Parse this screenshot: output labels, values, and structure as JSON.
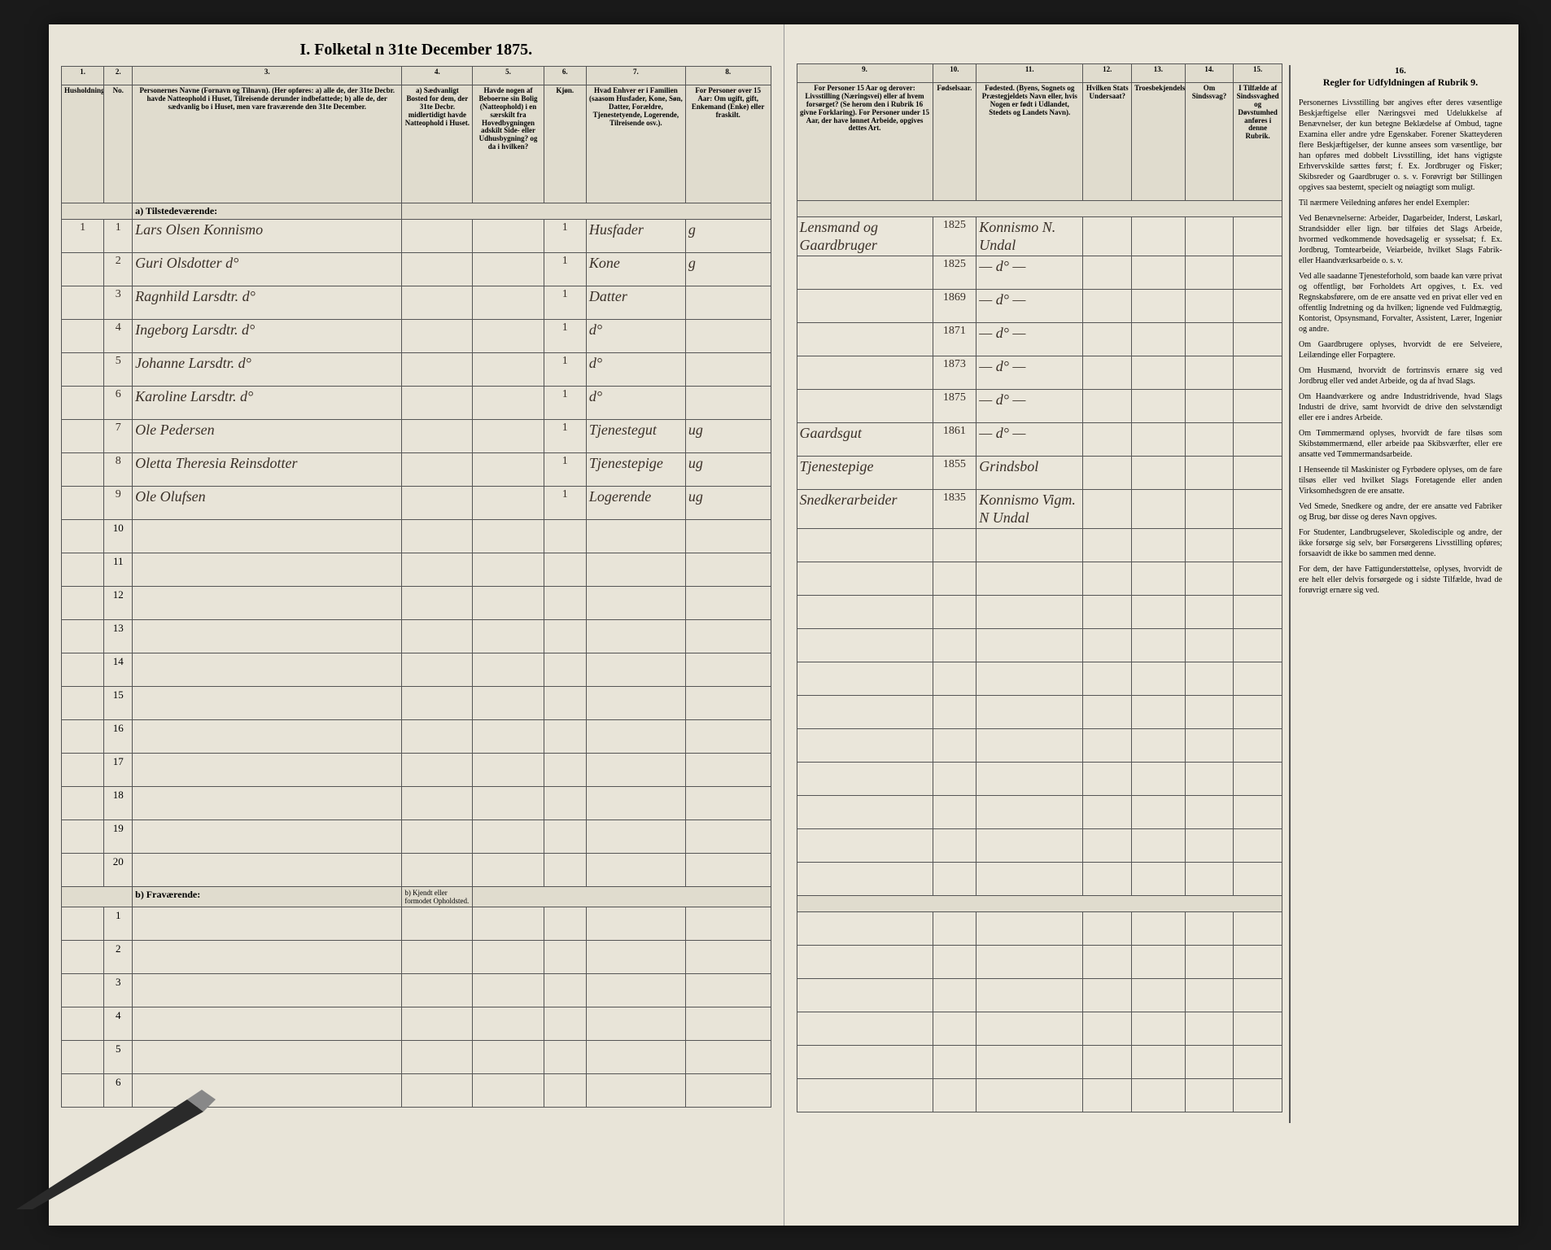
{
  "title": "I.  Folketal     n 31te December 1875.",
  "columns_left": {
    "1": "1.",
    "2": "2.",
    "3": "3.",
    "4": "4.",
    "5": "5.",
    "6": "6.",
    "7": "7.",
    "8": "8."
  },
  "columns_right": {
    "9": "9.",
    "10": "10.",
    "11": "11.",
    "12": "12.",
    "13": "13.",
    "14": "14.",
    "15": "15.",
    "16": "16."
  },
  "headers_left": {
    "1": "Husholdninger.",
    "2": "No.",
    "3": "Personernes Navne (Fornavn og Tilnavn).\n(Her opføres:\na) alle de, der 31te Decbr. havde Natteophold i Huset, Tilreisende derunder indbefattede;\nb) alle de, der sædvanlig bo i Huset, men vare fraværende den 31te December.",
    "4": "a) Sædvanligt Bosted for dem, der 31te Decbr. midlertidigt havde Natteophold i Huset.",
    "5": "Havde nogen af Beboerne sin Bolig (Natteophold) i en særskilt fra Hovedbygningen adskilt Side- eller Udhusbygning? og da i hvilken?",
    "6": "Kjøn.",
    "7": "Hvad Enhver er i Familien (saasom Husfader, Kone, Søn, Datter, Forældre, Tjenestetyende, Logerende, Tilreisende osv.).",
    "8": "For Personer over 15 Aar: Om ugift, gift, Enkemand (Enke) eller fraskilt."
  },
  "headers_right": {
    "9": "For Personer 15 Aar og derover: Livsstilling (Næringsvei) eller af hvem forsørget? (Se herom den i Rubrik 16 givne Forklaring).\nFor Personer under 15 Aar, der have lønnet Arbeide, opgives dettes Art.",
    "10": "Fødselsaar.",
    "11": "Fødested. (Byens, Sognets og Præstegjeldets Navn eller, hvis Nogen er født i Udlandet, Stedets og Landets Navn).",
    "12": "Hvilken Stats Undersaat?",
    "13": "Troesbekjendelse.",
    "14": "Om Sindssvag?",
    "15": "I Tilfælde af Sindssvaghed og Døvstumhed anføres i denne Rubrik.",
    "16": "Regler for Udfyldningen af Rubrik 9."
  },
  "section_a": "a)  Tilstedeværende:",
  "section_b": "b)  Fraværende:",
  "section_b_col4": "b) Kjendt eller formodet Opholdsted.",
  "rows": [
    {
      "hh": "1",
      "no": "1",
      "name": "Lars Olsen  Konnismo",
      "c4": "",
      "c5": "",
      "c6": "1",
      "c7": "Husfader",
      "c8": "g",
      "c9": "Lensmand og Gaardbruger",
      "c10": "1825",
      "c11": "Konnismo N. Undal",
      "c12": "",
      "c13": "",
      "c14": "",
      "c15": ""
    },
    {
      "hh": "",
      "no": "2",
      "name": "Guri Olsdotter   d°",
      "c4": "",
      "c5": "",
      "c6": "1",
      "c7": "Kone",
      "c8": "g",
      "c9": "",
      "c10": "1825",
      "c11": "— d° —",
      "c12": "",
      "c13": "",
      "c14": "",
      "c15": ""
    },
    {
      "hh": "",
      "no": "3",
      "name": "Ragnhild Larsdtr.  d°",
      "c4": "",
      "c5": "",
      "c6": "1",
      "c7": "Datter",
      "c8": "",
      "c9": "",
      "c10": "1869",
      "c11": "— d° —",
      "c12": "",
      "c13": "",
      "c14": "",
      "c15": ""
    },
    {
      "hh": "",
      "no": "4",
      "name": "Ingeborg Larsdtr.  d°",
      "c4": "",
      "c5": "",
      "c6": "1",
      "c7": "d°",
      "c8": "",
      "c9": "",
      "c10": "1871",
      "c11": "— d° —",
      "c12": "",
      "c13": "",
      "c14": "",
      "c15": ""
    },
    {
      "hh": "",
      "no": "5",
      "name": "Johanne Larsdtr.  d°",
      "c4": "",
      "c5": "",
      "c6": "1",
      "c7": "d°",
      "c8": "",
      "c9": "",
      "c10": "1873",
      "c11": "— d° —",
      "c12": "",
      "c13": "",
      "c14": "",
      "c15": ""
    },
    {
      "hh": "",
      "no": "6",
      "name": "Karoline Larsdtr.  d°",
      "c4": "",
      "c5": "",
      "c6": "1",
      "c7": "d°",
      "c8": "",
      "c9": "",
      "c10": "1875",
      "c11": "— d° —",
      "c12": "",
      "c13": "",
      "c14": "",
      "c15": ""
    },
    {
      "hh": "",
      "no": "7",
      "name": "Ole Pedersen",
      "c4": "",
      "c5": "",
      "c6": "1",
      "c7": "Tjenestegut",
      "c8": "ug",
      "c9": "Gaardsgut",
      "c10": "1861",
      "c11": "— d° —",
      "c12": "",
      "c13": "",
      "c14": "",
      "c15": ""
    },
    {
      "hh": "",
      "no": "8",
      "name": "Oletta Theresia Reinsdotter",
      "c4": "",
      "c5": "",
      "c6": "1",
      "c7": "Tjenestepige",
      "c8": "ug",
      "c9": "Tjenestepige",
      "c10": "1855",
      "c11": "Grindsbol",
      "c12": "",
      "c13": "",
      "c14": "",
      "c15": ""
    },
    {
      "hh": "",
      "no": "9",
      "name": "Ole Olufsen",
      "c4": "",
      "c5": "",
      "c6": "1",
      "c7": "Logerende",
      "c8": "ug",
      "c9": "Snedkerarbeider",
      "c10": "1835",
      "c11": "Konnismo Vigm. N Undal",
      "c12": "",
      "c13": "",
      "c14": "",
      "c15": ""
    }
  ],
  "empty_a": [
    "10",
    "11",
    "12",
    "13",
    "14",
    "15",
    "16",
    "17",
    "18",
    "19",
    "20"
  ],
  "empty_b": [
    "1",
    "2",
    "3",
    "4",
    "5",
    "6"
  ],
  "rules": {
    "title": "Regler for Udfyldningen af Rubrik 9.",
    "p1": "Personernes Livsstilling bør angives efter deres væsentlige Beskjæftigelse eller Næringsvei med Udelukkelse af Benævnelser, der kun betegne Beklædelse af Ombud, tagne Examina eller andre ydre Egenskaber. Forener Skatteyderen flere Beskjæftigelser, der kunne ansees som væsentlige, bør han opføres med dobbelt Livsstilling, idet hans vigtigste Erhvervskilde sættes først; f. Ex. Jordbruger og Fisker; Skibsreder og Gaardbruger o. s. v. Forøvrigt bør Stillingen opgives saa bestemt, specielt og nøiagtigt som muligt.",
    "p2": "Til nærmere Veiledning anføres her endel Exempler:",
    "p3": "Ved Benævnelserne: Arbeider, Dagarbeider, Inderst, Løskarl, Strandsidder eller lign. bør tilføies det Slags Arbeide, hvormed vedkommende hovedsagelig er sysselsat; f. Ex. Jordbrug, Tomtearbeide, Veiarbeide, hvilket Slags Fabrik- eller Haandværksarbeide o. s. v.",
    "p4": "Ved alle saadanne Tjenesteforhold, som baade kan være privat og offentligt, bør Forholdets Art opgives, t. Ex. ved Regnskabsførere, om de ere ansatte ved en privat eller ved en offentlig Indretning og da hvilken; lignende ved Fuldmægtig, Kontorist, Opsynsmand, Forvalter, Assistent, Lærer, Ingeniør og andre.",
    "p5": "Om Gaardbrugere oplyses, hvorvidt de ere Selveiere, Leilændinge eller Forpagtere.",
    "p6": "Om Husmænd, hvorvidt de fortrinsvis ernære sig ved Jordbrug eller ved andet Arbeide, og da af hvad Slags.",
    "p7": "Om Haandværkere og andre Industridrivende, hvad Slags Industri de drive, samt hvorvidt de drive den selvstændigt eller ere i andres Arbeide.",
    "p8": "Om Tømmermænd oplyses, hvorvidt de fare tilsøs som Skibstømmermænd, eller arbeide paa Skibsværfter, eller ere ansatte ved Tømmermandsarbeide.",
    "p9": "I Henseende til Maskinister og Fyrbødere oplyses, om de fare tilsøs eller ved hvilket Slags Foretagende eller anden Virksomhedsgren de ere ansatte.",
    "p10": "Ved Smede, Snedkere og andre, der ere ansatte ved Fabriker og Brug, bør disse og deres Navn opgives.",
    "p11": "For Studenter, Landbrugselever, Skoledisciple og andre, der ikke forsørge sig selv, bør Forsørgerens Livsstilling opføres; forsaavidt de ikke bo sammen med denne.",
    "p12": "For dem, der have Fattigunderstøttelse, oplyses, hvorvidt de ere helt eller delvis forsørgede og i sidste Tilfælde, hvad de forøvrigt ernære sig ved."
  },
  "colors": {
    "paper": "#e8e4d8",
    "border": "#555555",
    "ink": "#3a3028",
    "background": "#1a1a1a"
  }
}
